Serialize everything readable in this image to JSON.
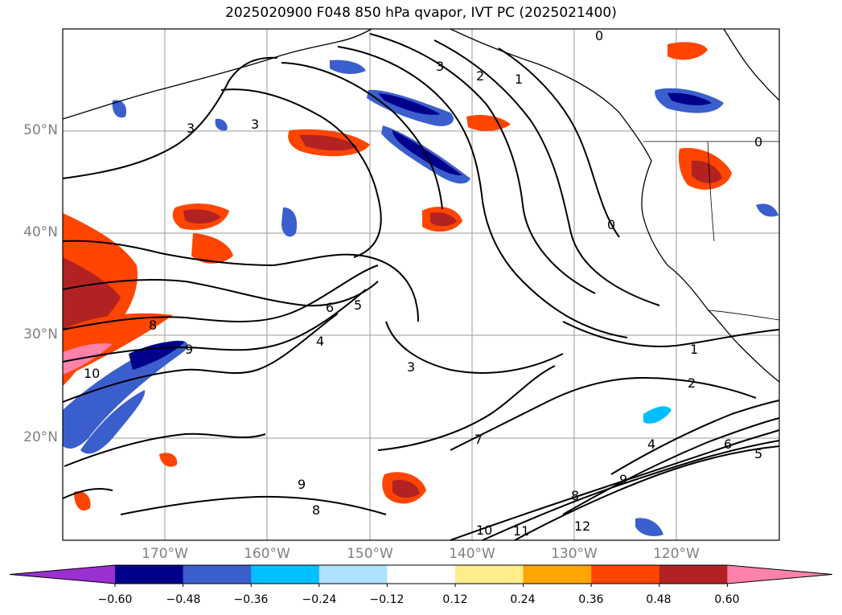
{
  "title": "2025020900 F048 850 hPa qvapor, IVT PC (2025021400)",
  "map": {
    "latitude_labels": [
      "50°N",
      "40°N",
      "30°N",
      "20°N"
    ],
    "longitude_labels": [
      "170°W",
      "160°W",
      "150°W",
      "140°W",
      "130°W",
      "120°W"
    ],
    "contour_labels": [
      "0",
      "1",
      "2",
      "3",
      "3",
      "3",
      "0",
      "0",
      "1",
      "2",
      "3",
      "4",
      "5",
      "6",
      "7",
      "8",
      "9",
      "9",
      "10",
      "10",
      "11",
      "12",
      "8",
      "6",
      "5",
      "4",
      "9",
      "8"
    ]
  },
  "colorbar": {
    "tick_labels": [
      "−0.60",
      "−0.48",
      "−0.36",
      "−0.24",
      "−0.12",
      "0.12",
      "0.24",
      "0.36",
      "0.48",
      "0.60"
    ],
    "colors": [
      "#9b30d0",
      "#00008b",
      "#3a5fcd",
      "#00bfff",
      "#b0e2ff",
      "#ffffff",
      "#ffec8b",
      "#ffa500",
      "#ff4500",
      "#b22222",
      "#ff82ab"
    ]
  }
}
